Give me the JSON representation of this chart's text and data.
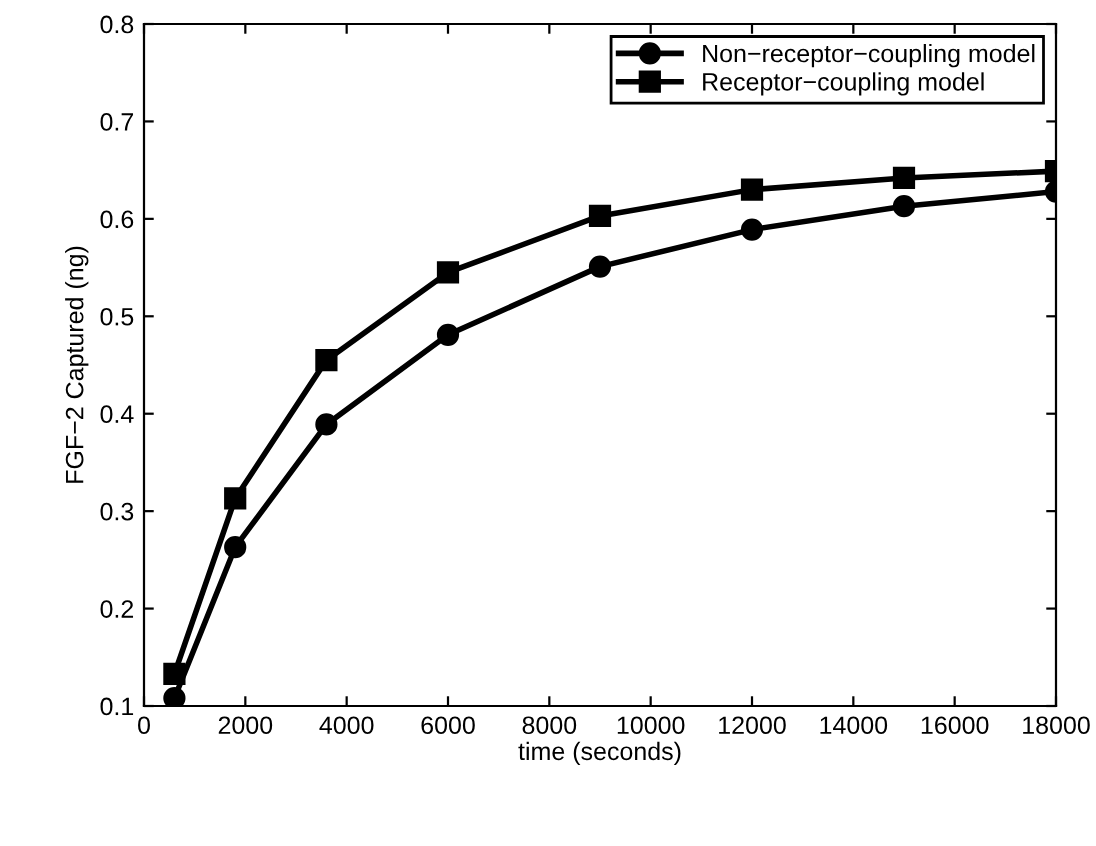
{
  "chart_data": {
    "type": "line",
    "xlabel": "time (seconds)",
    "ylabel": "FGF−2 Captured (ng)",
    "x": [
      600,
      1800,
      3600,
      6000,
      9000,
      12000,
      15000,
      18000
    ],
    "series": [
      {
        "name": "Non−receptor−coupling model",
        "color": "#000000",
        "marker": "circle",
        "values": [
          0.108,
          0.263,
          0.389,
          0.481,
          0.551,
          0.589,
          0.613,
          0.628
        ]
      },
      {
        "name": "Receptor−coupling model",
        "color": "#000000",
        "marker": "square",
        "values": [
          0.133,
          0.313,
          0.455,
          0.545,
          0.603,
          0.63,
          0.642,
          0.649
        ]
      }
    ],
    "xlim": [
      0,
      18000
    ],
    "xticks": [
      0,
      2000,
      4000,
      6000,
      8000,
      10000,
      12000,
      14000,
      16000,
      18000
    ],
    "ylim": [
      0.1,
      0.8
    ],
    "yticks": [
      0.1,
      0.2,
      0.3,
      0.4,
      0.5,
      0.6,
      0.7,
      0.8
    ],
    "grid": false,
    "legend": "top right",
    "line_style": "solid"
  }
}
